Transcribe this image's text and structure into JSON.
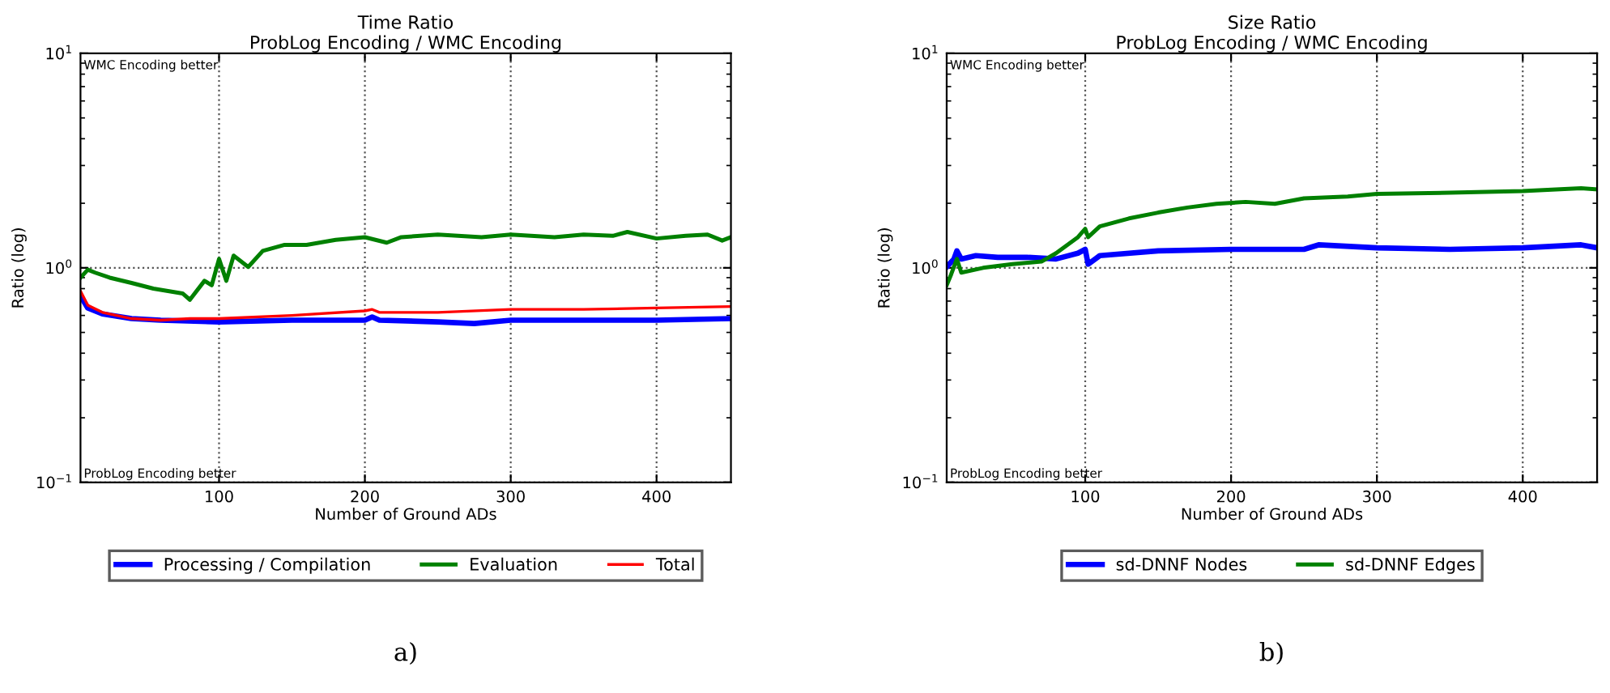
{
  "chart_data": [
    {
      "type": "line",
      "title": "Time Ratio\nProbLog Encoding / WMC Encoding",
      "xlabel": "Number of Ground ADs",
      "ylabel": "Ratio (log)",
      "log": "y",
      "grid": true,
      "legend": "bottom",
      "line_style": "solid",
      "marker": "none",
      "xlim": [
        5,
        451
      ],
      "xticks": [
        100,
        200,
        300,
        400
      ],
      "ylim": [
        0.1,
        10
      ],
      "yticks": [
        {
          "value": 0.1,
          "label": "10$^{−1}$"
        },
        {
          "value": 1,
          "label": "10$^{0}$"
        },
        {
          "value": 10,
          "label": "10$^{1}$"
        }
      ],
      "annotations": [
        "WMC Encoding better",
        "ProbLog Encoding better",
        "a)"
      ],
      "series": [
        {
          "name": "Processing / Compilation",
          "color": "#0000ff",
          "x": [
            5,
            10,
            20,
            40,
            60,
            100,
            150,
            200,
            205,
            210,
            250,
            275,
            300,
            350,
            400,
            451
          ],
          "values": [
            0.74,
            0.65,
            0.61,
            0.58,
            0.57,
            0.56,
            0.57,
            0.57,
            0.59,
            0.57,
            0.56,
            0.55,
            0.57,
            0.57,
            0.57,
            0.58
          ]
        },
        {
          "name": "Evaluation",
          "color": "#008000",
          "x": [
            5,
            10,
            15,
            25,
            40,
            55,
            65,
            75,
            80,
            90,
            95,
            100,
            105,
            110,
            120,
            130,
            145,
            160,
            180,
            200,
            215,
            225,
            250,
            280,
            300,
            330,
            350,
            370,
            380,
            400,
            420,
            435,
            445,
            451
          ],
          "values": [
            0.9,
            0.98,
            0.95,
            0.9,
            0.85,
            0.8,
            0.78,
            0.76,
            0.71,
            0.87,
            0.83,
            1.1,
            0.87,
            1.14,
            1.01,
            1.2,
            1.28,
            1.28,
            1.35,
            1.39,
            1.31,
            1.39,
            1.43,
            1.39,
            1.43,
            1.39,
            1.43,
            1.41,
            1.47,
            1.37,
            1.41,
            1.43,
            1.34,
            1.39
          ]
        },
        {
          "name": "Total",
          "color": "#ff0000",
          "x": [
            5,
            10,
            20,
            40,
            60,
            80,
            100,
            150,
            200,
            205,
            210,
            250,
            300,
            350,
            400,
            451
          ],
          "values": [
            0.78,
            0.67,
            0.62,
            0.58,
            0.57,
            0.58,
            0.58,
            0.6,
            0.63,
            0.64,
            0.62,
            0.62,
            0.64,
            0.64,
            0.65,
            0.66
          ]
        }
      ]
    },
    {
      "type": "line",
      "title": "Size Ratio\nProbLog Encoding / WMC Encoding",
      "xlabel": "Number of Ground ADs",
      "ylabel": "Ratio (log)",
      "log": "y",
      "grid": true,
      "legend": "bottom",
      "line_style": "solid",
      "marker": "none",
      "xlim": [
        5,
        451
      ],
      "xticks": [
        100,
        200,
        300,
        400
      ],
      "ylim": [
        0.1,
        10
      ],
      "yticks": [
        {
          "value": 0.1,
          "label": "10$^{−1}$"
        },
        {
          "value": 1,
          "label": "10$^{0}$"
        },
        {
          "value": 10,
          "label": "10$^{1}$"
        }
      ],
      "annotations": [
        "WMC Encoding better",
        "ProbLog Encoding better",
        "b)"
      ],
      "series": [
        {
          "name": "sd-DNNF Nodes",
          "color": "#0000ff",
          "x": [
            5,
            10,
            12,
            15,
            25,
            40,
            60,
            80,
            95,
            100,
            102,
            110,
            150,
            200,
            250,
            260,
            300,
            350,
            400,
            440,
            451
          ],
          "values": [
            1.01,
            1.1,
            1.2,
            1.1,
            1.14,
            1.12,
            1.12,
            1.1,
            1.17,
            1.22,
            1.04,
            1.14,
            1.2,
            1.22,
            1.22,
            1.28,
            1.24,
            1.22,
            1.24,
            1.28,
            1.24
          ]
        },
        {
          "name": "sd-DNNF Edges",
          "color": "#008000",
          "x": [
            5,
            8,
            12,
            15,
            30,
            50,
            70,
            80,
            95,
            100,
            102,
            110,
            130,
            150,
            170,
            190,
            210,
            230,
            250,
            280,
            300,
            350,
            400,
            440,
            451
          ],
          "values": [
            0.83,
            0.93,
            1.1,
            0.95,
            1.0,
            1.04,
            1.07,
            1.17,
            1.39,
            1.52,
            1.39,
            1.56,
            1.7,
            1.81,
            1.91,
            1.99,
            2.03,
            1.99,
            2.11,
            2.15,
            2.21,
            2.24,
            2.28,
            2.35,
            2.32
          ]
        }
      ]
    }
  ]
}
